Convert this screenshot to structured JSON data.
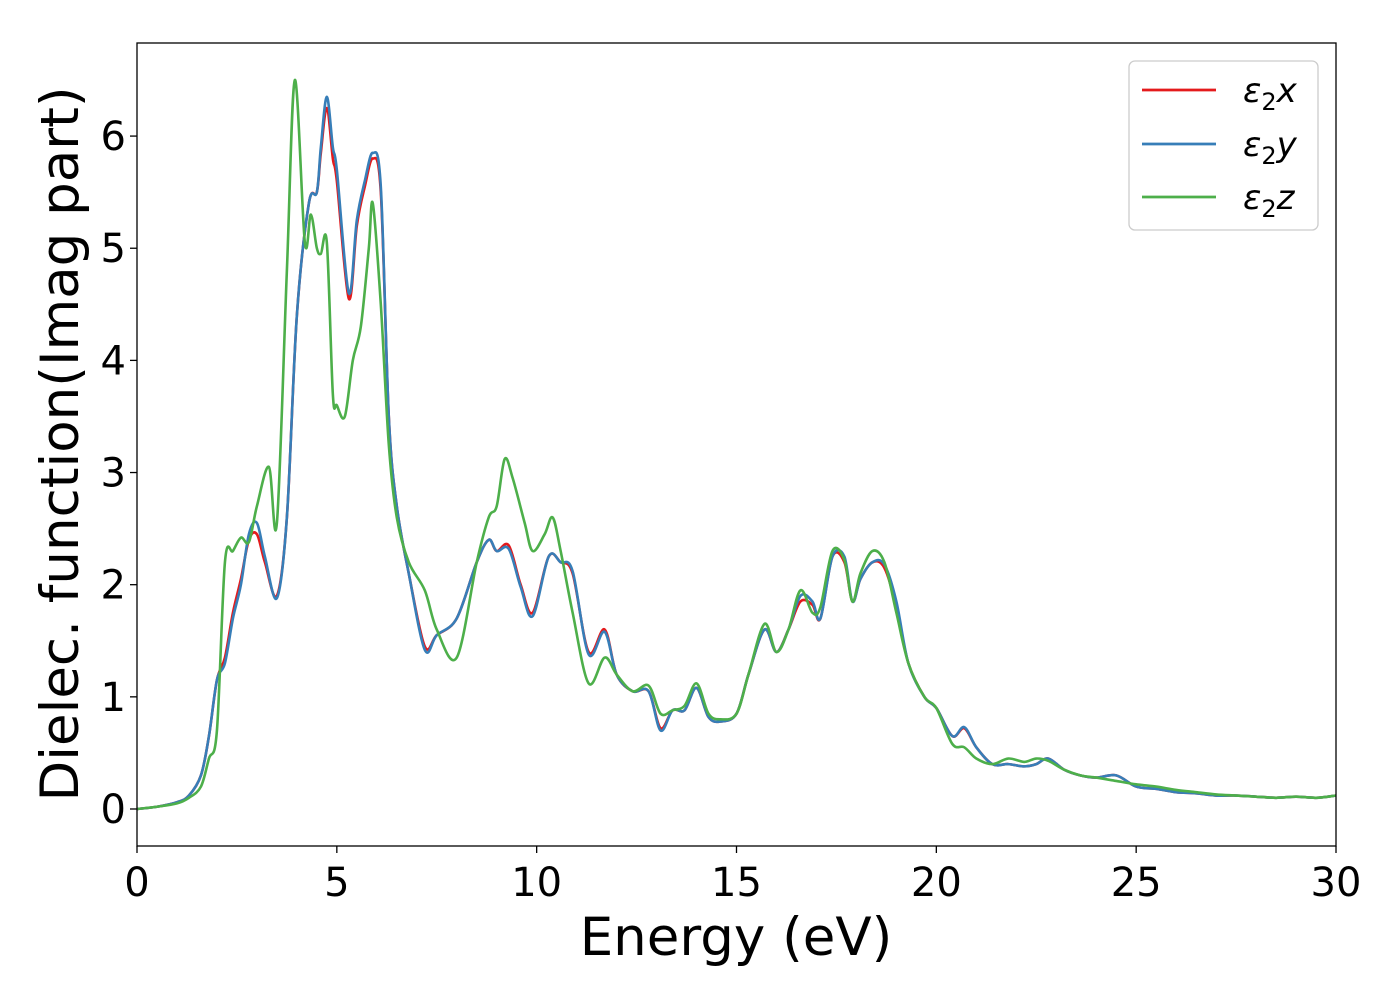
{
  "chart_data": {
    "type": "line",
    "title": "",
    "xlabel": "Energy (eV)",
    "ylabel": "Dielec. function(Imag part)",
    "xlim": [
      0,
      30
    ],
    "ylim": [
      -0.33,
      6.83
    ],
    "xticks": [
      0,
      5,
      10,
      15,
      20,
      25,
      30
    ],
    "xtick_labels": [
      "0",
      "5",
      "10",
      "15",
      "20",
      "25",
      "30"
    ],
    "yticks": [
      0,
      1,
      2,
      3,
      4,
      5,
      6
    ],
    "ytick_labels": [
      "0",
      "1",
      "2",
      "3",
      "4",
      "5",
      "6"
    ],
    "grid": false,
    "legend_position": "top-right",
    "series": [
      {
        "name": "ε2x",
        "legend_main": "ε",
        "legend_sub": "2",
        "legend_suffix": "x",
        "color": "#e41a1c",
        "x": [
          0,
          0.5,
          1.0,
          1.3,
          1.6,
          1.8,
          2.0,
          2.2,
          2.4,
          2.6,
          2.8,
          3.0,
          3.2,
          3.5,
          3.75,
          4.0,
          4.3,
          4.5,
          4.6,
          4.75,
          4.9,
          5.0,
          5.3,
          5.5,
          5.7,
          5.9,
          6.1,
          6.3,
          6.5,
          6.8,
          7.2,
          7.5,
          8.0,
          8.5,
          8.8,
          9.0,
          9.3,
          9.6,
          9.9,
          10.3,
          10.6,
          10.9,
          11.3,
          11.7,
          12.0,
          12.4,
          12.8,
          13.1,
          13.4,
          13.7,
          14.0,
          14.3,
          14.6,
          15.0,
          15.3,
          15.7,
          16.0,
          16.3,
          16.6,
          16.9,
          17.1,
          17.4,
          17.7,
          17.9,
          18.1,
          18.4,
          18.7,
          19.0,
          19.3,
          19.7,
          20.0,
          20.4,
          20.7,
          21.0,
          21.4,
          21.8,
          22.2,
          22.5,
          22.8,
          23.2,
          23.6,
          24.0,
          24.5,
          25.0,
          25.5,
          26.0,
          26.5,
          27.0,
          27.5,
          28.0,
          28.5,
          29.0,
          29.5,
          30.0
        ],
        "values": [
          0.0,
          0.02,
          0.06,
          0.12,
          0.3,
          0.65,
          1.15,
          1.35,
          1.75,
          2.05,
          2.4,
          2.45,
          2.2,
          1.9,
          2.6,
          4.4,
          5.4,
          5.5,
          5.85,
          6.25,
          5.8,
          5.6,
          4.55,
          5.2,
          5.55,
          5.8,
          5.5,
          3.5,
          2.7,
          2.1,
          1.45,
          1.55,
          1.7,
          2.2,
          2.4,
          2.3,
          2.35,
          2.0,
          1.75,
          2.25,
          2.2,
          2.1,
          1.4,
          1.6,
          1.2,
          1.05,
          1.05,
          0.72,
          0.88,
          0.88,
          1.08,
          0.82,
          0.78,
          0.85,
          1.2,
          1.6,
          1.4,
          1.6,
          1.85,
          1.82,
          1.7,
          2.25,
          2.2,
          1.85,
          2.05,
          2.2,
          2.15,
          1.8,
          1.3,
          1.0,
          0.9,
          0.65,
          0.72,
          0.55,
          0.4,
          0.4,
          0.38,
          0.4,
          0.45,
          0.35,
          0.3,
          0.28,
          0.3,
          0.2,
          0.18,
          0.15,
          0.14,
          0.12,
          0.12,
          0.11,
          0.1,
          0.11,
          0.1,
          0.12
        ]
      },
      {
        "name": "ε2y",
        "legend_main": "ε",
        "legend_sub": "2",
        "legend_suffix": "y",
        "color": "#377eb8",
        "x": [
          0,
          0.5,
          1.0,
          1.3,
          1.6,
          1.8,
          2.0,
          2.2,
          2.4,
          2.6,
          2.8,
          3.0,
          3.2,
          3.5,
          3.75,
          4.0,
          4.3,
          4.5,
          4.6,
          4.75,
          4.9,
          5.0,
          5.3,
          5.5,
          5.7,
          5.9,
          6.1,
          6.3,
          6.5,
          6.8,
          7.2,
          7.5,
          8.0,
          8.5,
          8.8,
          9.0,
          9.3,
          9.6,
          9.9,
          10.3,
          10.6,
          10.9,
          11.3,
          11.7,
          12.0,
          12.4,
          12.8,
          13.1,
          13.4,
          13.7,
          14.0,
          14.3,
          14.6,
          15.0,
          15.3,
          15.7,
          16.0,
          16.3,
          16.6,
          16.9,
          17.1,
          17.4,
          17.7,
          17.9,
          18.1,
          18.4,
          18.7,
          19.0,
          19.3,
          19.7,
          20.0,
          20.4,
          20.7,
          21.0,
          21.4,
          21.8,
          22.2,
          22.5,
          22.8,
          23.2,
          23.6,
          24.0,
          24.5,
          25.0,
          25.5,
          26.0,
          26.5,
          27.0,
          27.5,
          28.0,
          28.5,
          29.0,
          29.5,
          30.0
        ],
        "values": [
          0.0,
          0.02,
          0.06,
          0.12,
          0.3,
          0.65,
          1.15,
          1.3,
          1.7,
          2.0,
          2.45,
          2.55,
          2.25,
          1.88,
          2.6,
          4.4,
          5.4,
          5.5,
          5.9,
          6.35,
          5.9,
          5.7,
          4.6,
          5.25,
          5.6,
          5.85,
          5.55,
          3.5,
          2.7,
          2.1,
          1.42,
          1.55,
          1.7,
          2.2,
          2.4,
          2.3,
          2.32,
          1.98,
          1.72,
          2.25,
          2.2,
          2.12,
          1.38,
          1.58,
          1.2,
          1.05,
          1.05,
          0.7,
          0.88,
          0.88,
          1.08,
          0.82,
          0.78,
          0.85,
          1.2,
          1.6,
          1.4,
          1.6,
          1.9,
          1.85,
          1.7,
          2.25,
          2.25,
          1.85,
          2.05,
          2.2,
          2.18,
          1.85,
          1.3,
          1.0,
          0.9,
          0.65,
          0.73,
          0.55,
          0.4,
          0.4,
          0.38,
          0.4,
          0.45,
          0.35,
          0.3,
          0.28,
          0.3,
          0.2,
          0.18,
          0.15,
          0.14,
          0.12,
          0.12,
          0.11,
          0.1,
          0.11,
          0.1,
          0.12
        ]
      },
      {
        "name": "ε2z",
        "legend_main": "ε",
        "legend_sub": "2",
        "legend_suffix": "z",
        "color": "#4daf4a",
        "x": [
          0,
          0.5,
          1.0,
          1.3,
          1.6,
          1.8,
          2.0,
          2.2,
          2.4,
          2.6,
          2.8,
          3.0,
          3.3,
          3.5,
          3.75,
          3.95,
          4.2,
          4.35,
          4.5,
          4.6,
          4.75,
          4.9,
          5.0,
          5.2,
          5.4,
          5.6,
          5.8,
          5.9,
          6.1,
          6.3,
          6.5,
          6.8,
          7.2,
          7.5,
          8.0,
          8.5,
          8.8,
          9.0,
          9.2,
          9.4,
          9.7,
          9.9,
          10.2,
          10.4,
          10.6,
          10.9,
          11.3,
          11.7,
          12.0,
          12.4,
          12.8,
          13.1,
          13.4,
          13.7,
          14.0,
          14.3,
          14.6,
          15.0,
          15.3,
          15.7,
          16.0,
          16.3,
          16.6,
          16.9,
          17.1,
          17.4,
          17.7,
          17.9,
          18.1,
          18.4,
          18.7,
          19.0,
          19.3,
          19.7,
          20.0,
          20.4,
          20.7,
          21.0,
          21.4,
          21.8,
          22.2,
          22.5,
          22.8,
          23.2,
          23.6,
          24.0,
          24.5,
          25.0,
          25.5,
          26.0,
          26.5,
          27.0,
          27.5,
          28.0,
          28.5,
          29.0,
          29.5,
          30.0
        ],
        "values": [
          0.0,
          0.02,
          0.05,
          0.1,
          0.2,
          0.45,
          0.7,
          2.2,
          2.3,
          2.42,
          2.38,
          2.7,
          3.05,
          2.55,
          4.8,
          6.5,
          5.05,
          5.3,
          5.0,
          4.95,
          5.05,
          3.7,
          3.6,
          3.5,
          4.0,
          4.3,
          5.0,
          5.4,
          4.5,
          3.25,
          2.6,
          2.2,
          1.95,
          1.6,
          1.35,
          2.2,
          2.6,
          2.7,
          3.12,
          2.95,
          2.55,
          2.3,
          2.45,
          2.6,
          2.3,
          1.75,
          1.12,
          1.35,
          1.2,
          1.05,
          1.1,
          0.85,
          0.88,
          0.92,
          1.12,
          0.85,
          0.8,
          0.85,
          1.2,
          1.65,
          1.4,
          1.6,
          1.95,
          1.75,
          1.8,
          2.3,
          2.22,
          1.85,
          2.1,
          2.3,
          2.2,
          1.75,
          1.3,
          1.0,
          0.9,
          0.58,
          0.55,
          0.45,
          0.4,
          0.45,
          0.42,
          0.45,
          0.43,
          0.35,
          0.3,
          0.28,
          0.25,
          0.22,
          0.2,
          0.17,
          0.15,
          0.13,
          0.12,
          0.11,
          0.1,
          0.11,
          0.1,
          0.12
        ]
      }
    ]
  }
}
